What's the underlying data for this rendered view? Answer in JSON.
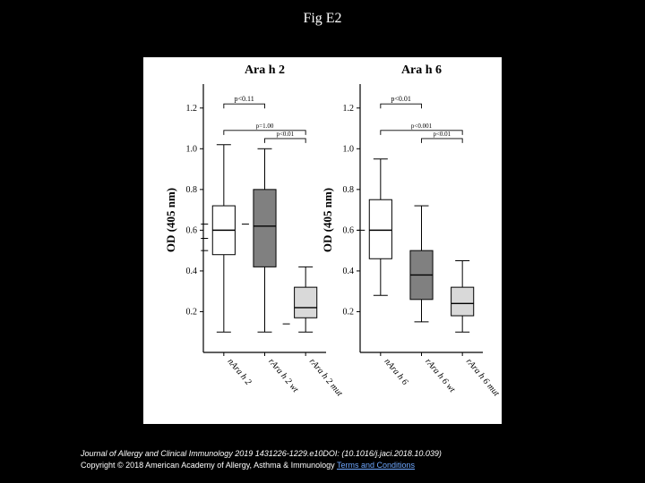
{
  "title": "Fig E2",
  "caption_line": "Journal of Allergy and Clinical Immunology 2019 1431226-1229.e10DOI: (10.1016/j.jaci.2018.10.039)",
  "copyright_line_prefix": "Copyright © 2018 American Academy of Allergy, Asthma & Immunology ",
  "terms_label": "Terms and Conditions",
  "figure": {
    "background": "#ffffff",
    "panels": [
      {
        "title": "Ara h 2",
        "categories": [
          "nAra h 2",
          "rAra h 2 wt",
          "rAra h 2 mut"
        ],
        "pvals": [
          {
            "from": 0,
            "to": 1,
            "label": "p<0.11",
            "y": 1.22,
            "fontsize": 8
          },
          {
            "from": 0,
            "to": 2,
            "label": "p=1.00",
            "y": 1.09,
            "fontsize": 7
          },
          {
            "from": 1,
            "to": 2,
            "label": "p<0.01",
            "y": 1.05,
            "fontsize": 7
          }
        ],
        "boxes": [
          {
            "fill": "#ffffff",
            "stroke": "#000000",
            "q1": 0.48,
            "median": 0.6,
            "q3": 0.72,
            "whisker_low": 0.1,
            "whisker_high": 1.02,
            "outliers": [
              0.63,
              0.56,
              0.5
            ]
          },
          {
            "fill": "#808080",
            "stroke": "#000000",
            "q1": 0.42,
            "median": 0.62,
            "q3": 0.8,
            "whisker_low": 0.1,
            "whisker_high": 1.0,
            "outliers": [
              0.63
            ]
          },
          {
            "fill": "#d9d9d9",
            "stroke": "#000000",
            "q1": 0.17,
            "median": 0.22,
            "q3": 0.32,
            "whisker_low": 0.1,
            "whisker_high": 0.42,
            "outliers": [
              0.14
            ]
          }
        ]
      },
      {
        "title": "Ara h 6",
        "categories": [
          "nAra h 6",
          "rAra h 6 wt",
          "rAra h 6 mut"
        ],
        "pvals": [
          {
            "from": 0,
            "to": 1,
            "label": "p<0.01",
            "y": 1.22,
            "fontsize": 8
          },
          {
            "from": 0,
            "to": 2,
            "label": "p<0.001",
            "y": 1.09,
            "fontsize": 7
          },
          {
            "from": 1,
            "to": 2,
            "label": "p<0.01",
            "y": 1.05,
            "fontsize": 7
          }
        ],
        "boxes": [
          {
            "fill": "#ffffff",
            "stroke": "#000000",
            "q1": 0.46,
            "median": 0.6,
            "q3": 0.75,
            "whisker_low": 0.28,
            "whisker_high": 0.95,
            "outliers": [
              0.6
            ]
          },
          {
            "fill": "#808080",
            "stroke": "#000000",
            "q1": 0.26,
            "median": 0.38,
            "q3": 0.5,
            "whisker_low": 0.15,
            "whisker_high": 0.72,
            "outliers": []
          },
          {
            "fill": "#d9d9d9",
            "stroke": "#000000",
            "q1": 0.18,
            "median": 0.24,
            "q3": 0.32,
            "whisker_low": 0.1,
            "whisker_high": 0.45,
            "outliers": []
          }
        ]
      }
    ],
    "axis": {
      "ylabel": "OD (405 nm)",
      "ylabel_fontsize": 13,
      "ylabel_fontweight": "bold",
      "ylim": [
        0,
        1.3
      ],
      "yticks": [
        0.2,
        0.4,
        0.6,
        0.8,
        1.0,
        1.2
      ],
      "tick_fontsize": 10,
      "xtick_fontsize": 10,
      "title_fontsize": 14,
      "title_fontweight": "bold",
      "axis_color": "#000000",
      "box_width_frac": 0.55,
      "whisker_cap_frac": 0.35
    }
  }
}
